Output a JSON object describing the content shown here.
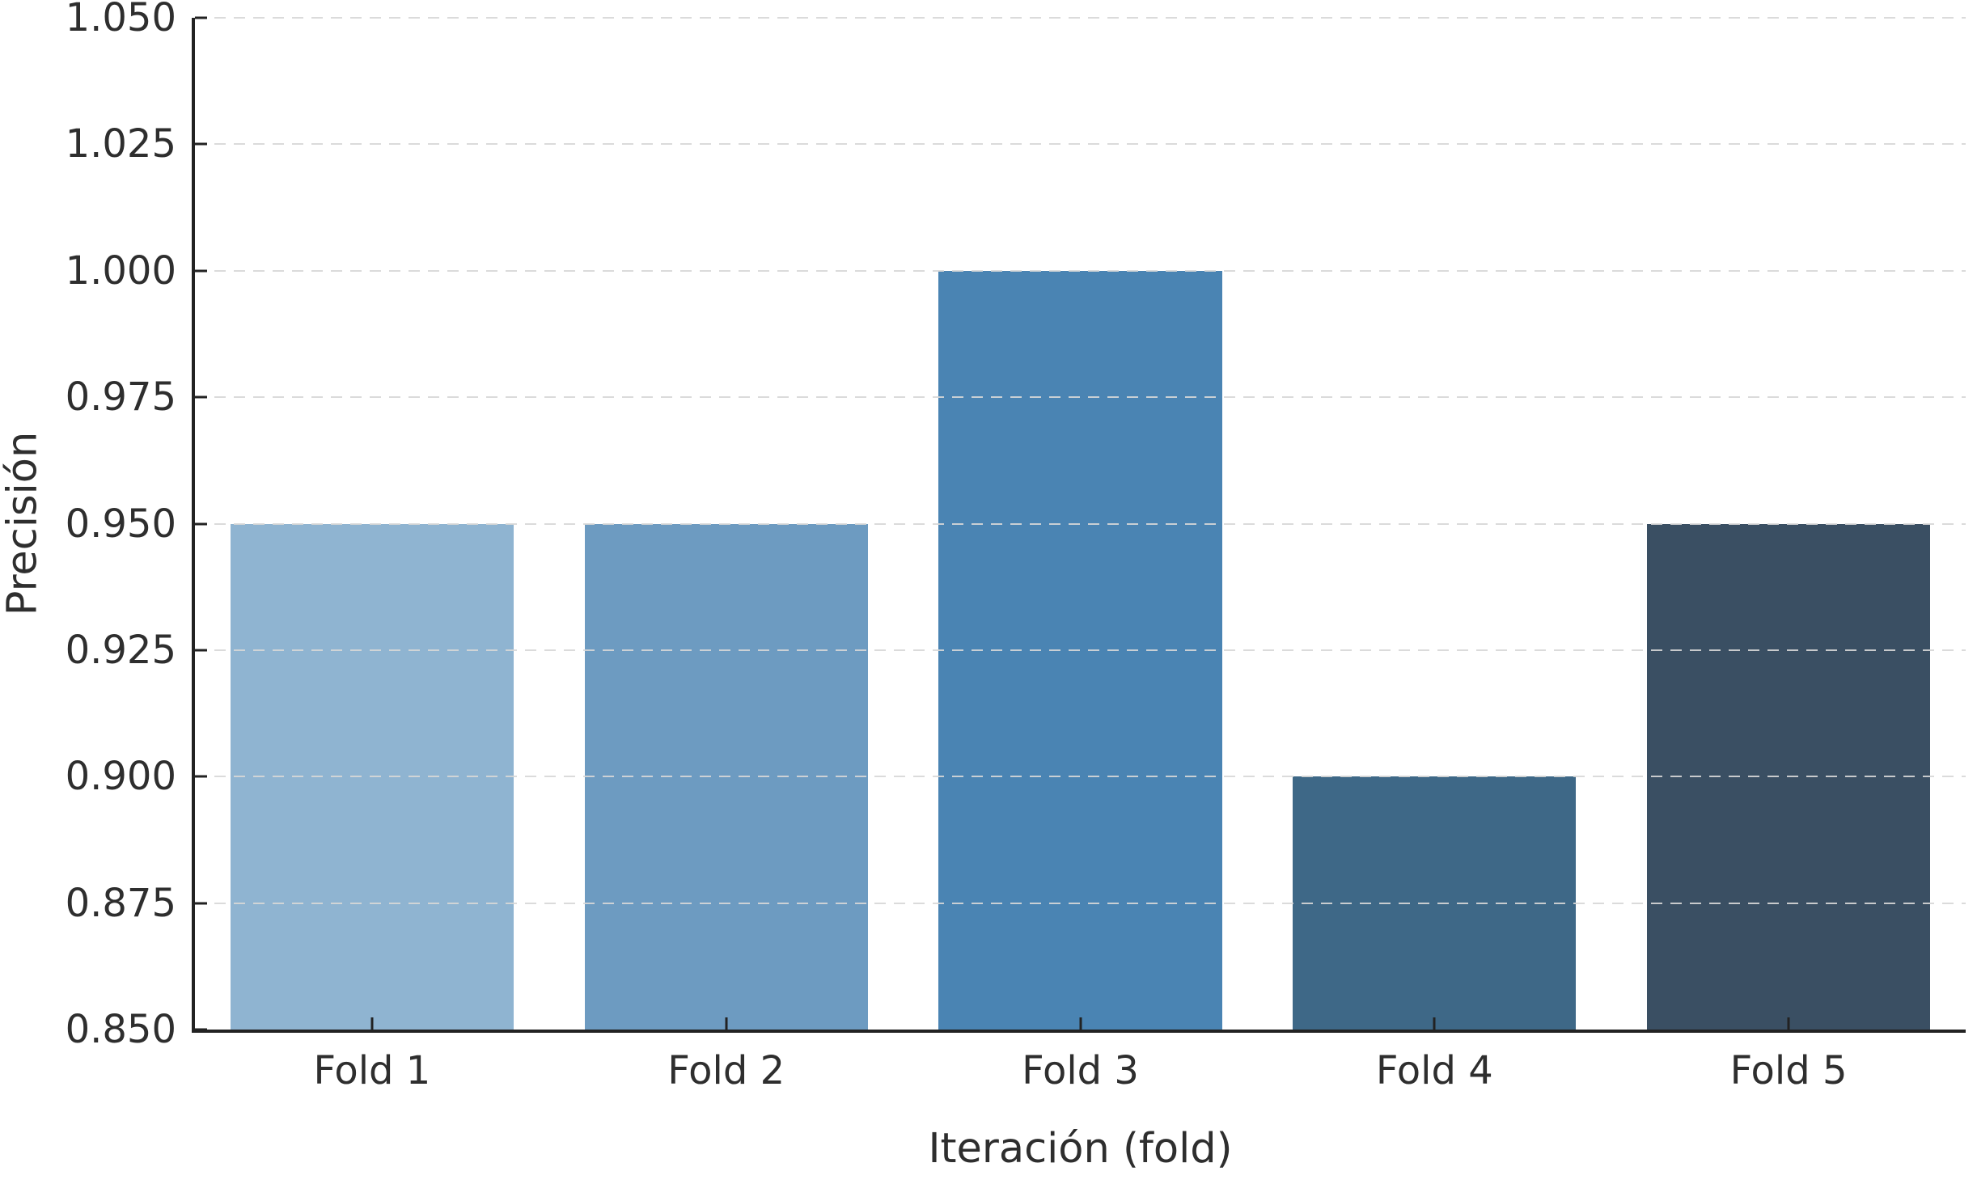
{
  "figure": {
    "background_color": "#ffffff",
    "axis_color": "#222222",
    "text_color": "#2e2e2e",
    "gridline_color": "rgba(215,215,215,0.9)"
  },
  "chart_data": {
    "type": "bar",
    "title": "",
    "xlabel": "Iteración (fold)",
    "ylabel": "Precisión",
    "categories": [
      "Fold 1",
      "Fold 2",
      "Fold 3",
      "Fold 4",
      "Fold 5"
    ],
    "values": [
      0.95,
      0.95,
      1.0,
      0.9,
      0.95
    ],
    "bar_colors": [
      "#8FB4D1",
      "#6D9BC1",
      "#4A84B3",
      "#3E6887",
      "#3A4F63"
    ],
    "ylim": [
      0.85,
      1.05
    ],
    "yticks": [
      "0.850",
      "0.875",
      "0.900",
      "0.925",
      "0.950",
      "0.975",
      "1.000",
      "1.025",
      "1.050"
    ],
    "bar_width_fraction": 0.8,
    "grid": {
      "axis": "y",
      "style": "dashed",
      "on_top": true
    },
    "legend": null
  }
}
